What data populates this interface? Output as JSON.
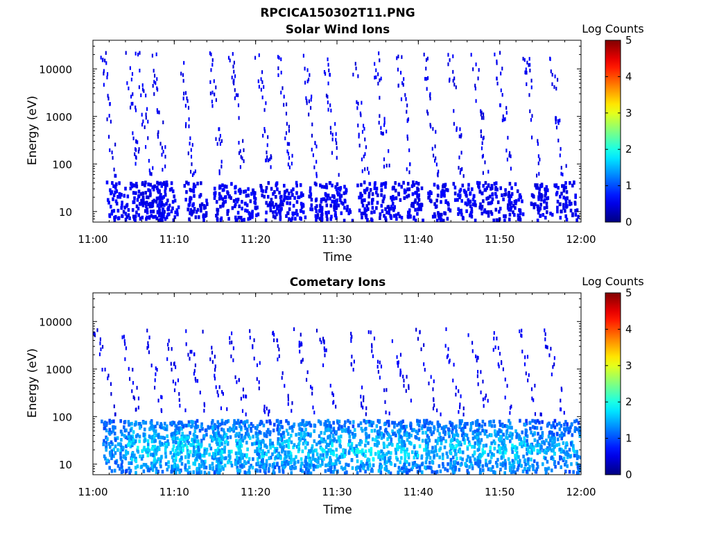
{
  "figure": {
    "title": "RPCICA150302T11.PNG"
  },
  "chart_data": [
    {
      "type": "heatmap",
      "title": "Solar Wind Ions",
      "xlabel": "Time",
      "ylabel": "Energy (eV)",
      "x_ticks": [
        "11:00",
        "11:10",
        "11:20",
        "11:30",
        "11:40",
        "11:50",
        "12:00"
      ],
      "xlim": [
        "11:00",
        "12:00"
      ],
      "y_scale": "log",
      "y_ticks": [
        10,
        100,
        1000,
        10000
      ],
      "ylim": [
        6,
        40000
      ],
      "colorbar": {
        "label": "Log Counts",
        "range": [
          0,
          5
        ],
        "ticks": [
          0,
          1,
          2,
          3,
          4,
          5
        ],
        "colormap": "jet"
      },
      "bursts": [
        {
          "t": "11:02:40",
          "v": 1.2
        },
        {
          "t": "11:05:40",
          "v": 1.1
        },
        {
          "t": "11:07:00",
          "v": 1.0
        },
        {
          "t": "11:08:50",
          "v": 1.2
        },
        {
          "t": "11:12:20",
          "v": 1.1
        },
        {
          "t": "11:15:50",
          "v": 1.1
        },
        {
          "t": "11:18:30",
          "v": 1.2
        },
        {
          "t": "11:21:40",
          "v": 1.1
        },
        {
          "t": "11:24:20",
          "v": 1.2
        },
        {
          "t": "11:27:30",
          "v": 1.1
        },
        {
          "t": "11:30:00",
          "v": 1.2
        },
        {
          "t": "11:33:30",
          "v": 1.1
        },
        {
          "t": "11:36:10",
          "v": 1.1
        },
        {
          "t": "11:39:00",
          "v": 1.1
        },
        {
          "t": "11:42:10",
          "v": 1.1
        },
        {
          "t": "11:45:20",
          "v": 1.2
        },
        {
          "t": "11:48:20",
          "v": 1.1
        },
        {
          "t": "11:51:10",
          "v": 1.1
        },
        {
          "t": "11:54:40",
          "v": 1.1
        },
        {
          "t": "11:57:50",
          "v": 1.1
        }
      ]
    },
    {
      "type": "heatmap",
      "title": "Cometary Ions",
      "xlabel": "Time",
      "ylabel": "Energy (eV)",
      "x_ticks": [
        "11:00",
        "11:10",
        "11:20",
        "11:30",
        "11:40",
        "11:50",
        "12:00"
      ],
      "xlim": [
        "11:00",
        "12:00"
      ],
      "y_scale": "log",
      "y_ticks": [
        10,
        100,
        1000,
        10000
      ],
      "ylim": [
        6,
        40000
      ],
      "colorbar": {
        "label": "Log Counts",
        "range": [
          0,
          5
        ],
        "ticks": [
          0,
          1,
          2,
          3,
          4,
          5
        ],
        "colormap": "jet"
      },
      "bursts": [
        {
          "t": "11:02:40",
          "v": 1.6
        },
        {
          "t": "11:05:40",
          "v": 1.9
        },
        {
          "t": "11:08:40",
          "v": 1.8
        },
        {
          "t": "11:11:00",
          "v": 1.9
        },
        {
          "t": "11:13:40",
          "v": 1.8
        },
        {
          "t": "11:16:10",
          "v": 1.9
        },
        {
          "t": "11:18:50",
          "v": 1.8
        },
        {
          "t": "11:21:30",
          "v": 1.7
        },
        {
          "t": "11:24:20",
          "v": 1.8
        },
        {
          "t": "11:27:20",
          "v": 1.8
        },
        {
          "t": "11:30:00",
          "v": 1.8
        },
        {
          "t": "11:33:30",
          "v": 1.9
        },
        {
          "t": "11:36:20",
          "v": 1.8
        },
        {
          "t": "11:39:10",
          "v": 1.8
        },
        {
          "t": "11:42:20",
          "v": 1.7
        },
        {
          "t": "11:45:20",
          "v": 1.8
        },
        {
          "t": "11:48:30",
          "v": 1.8
        },
        {
          "t": "11:51:20",
          "v": 1.8
        },
        {
          "t": "11:54:40",
          "v": 1.7
        },
        {
          "t": "11:57:50",
          "v": 1.6
        }
      ]
    }
  ]
}
